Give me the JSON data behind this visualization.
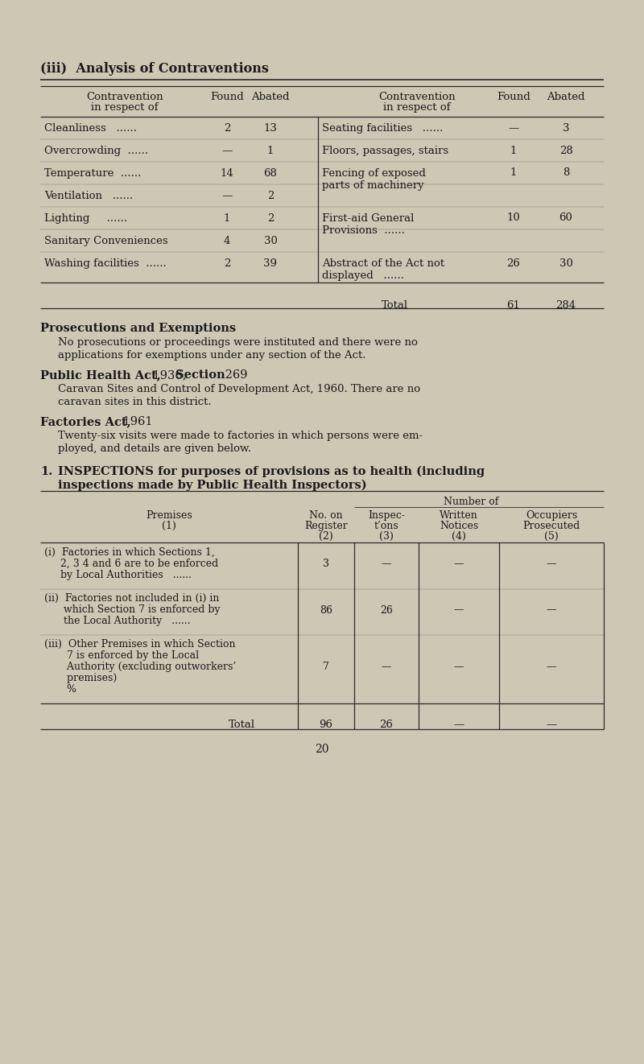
{
  "bg_color": "#cdc8b4",
  "title": "(iii)  Analysis of Contraventions",
  "left_labels": [
    "Cleanliness   ......",
    "Overcrowding  ......",
    "Temperature  ......",
    "Ventilation   ......",
    "Lighting     ......",
    "Sanitary Conveniences",
    "Washing facilities  ......"
  ],
  "left_found": [
    "2",
    "—",
    "14",
    "—",
    "1",
    "4",
    "2"
  ],
  "left_abated": [
    "13",
    "1",
    "68",
    "2",
    "2",
    "30",
    "39"
  ],
  "right_items": [
    {
      "row": 0,
      "label": "Seating facilities   ......",
      "found": "—",
      "abated": "3"
    },
    {
      "row": 1,
      "label": "Floors, passages, stairs",
      "found": "1",
      "abated": "28"
    },
    {
      "row": 2,
      "label": "Fencing of exposed\nparts of machinery",
      "found": "1",
      "abated": "8"
    },
    {
      "row": 4,
      "label": "First-aid General\nProvisions  ......",
      "found": "10",
      "abated": "60"
    },
    {
      "row": 6,
      "label": "Abstract of the Act not\ndisplayed   ......",
      "found": "26",
      "abated": "30"
    }
  ],
  "total_found": "61",
  "total_abated": "284",
  "prose1_heading": "Prosecutions and Exemptions",
  "prose1_body": "No prosecutions or proceedings were instituted and there were no\napplications for exemptions under any section of the Act.",
  "prose2_heading_bold": "Public Health Act,",
  "prose2_heading_mid": " 1936, ",
  "prose2_heading_bold2": "Section",
  "prose2_heading_end": " 269",
  "prose2_body": "Caravan Sites and Control of Development Act, 1960. There are no\ncaravan sites in this district.",
  "prose3_heading_bold": "Factories Act,",
  "prose3_heading_end": " 1961",
  "prose3_body": "Twenty-six visits were made to factories in which persons were em-\nployed, and details are given below.",
  "sec2_num": "1.",
  "sec2_line1": "INSPECTIONS for purposes of provisions as to health (including",
  "sec2_line2": "inspections made by Public Health Inspectors)",
  "t2_rows": [
    {
      "lines": [
        "(i)  Factories in which Sections 1,",
        "     2, 3 4 and 6 are to be enforced",
        "     by Local Authorities   ......"
      ],
      "values": [
        "3",
        "—",
        "—",
        "—"
      ]
    },
    {
      "lines": [
        "(ii)  Factories not included in (i) in",
        "      which Section 7 is enforced by",
        "      the Local Authority   ......"
      ],
      "values": [
        "86",
        "26",
        "—",
        "—"
      ]
    },
    {
      "lines": [
        "(iii)  Other Premises in which Section",
        "       7 is enforced by the Local",
        "       Authority (excluding outworkers’",
        "       premises)",
        "       %"
      ],
      "values": [
        "7",
        "—",
        "—",
        "—"
      ]
    }
  ],
  "t2_total": [
    "96",
    "26",
    "—",
    "—"
  ],
  "page_number": "20"
}
